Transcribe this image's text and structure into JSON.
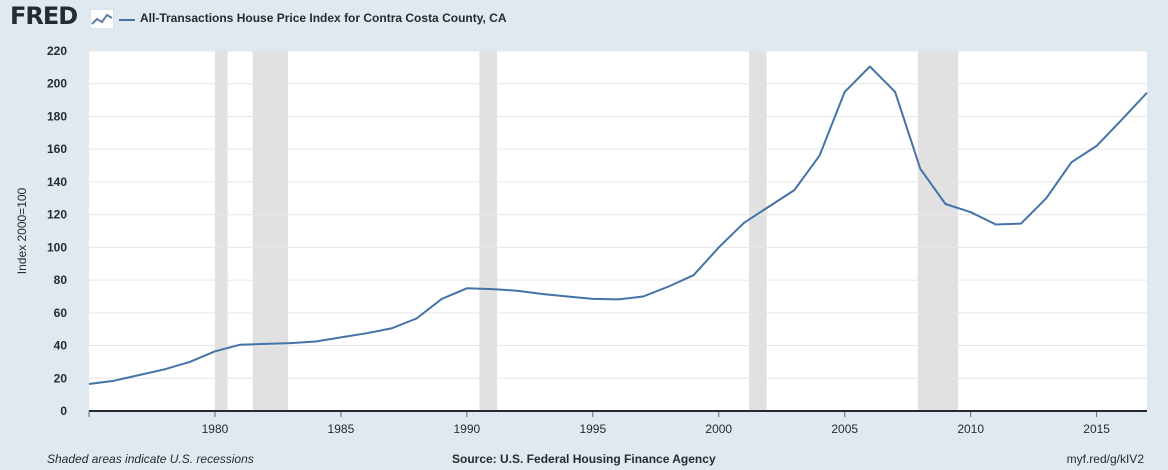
{
  "header": {
    "logo_text": "FRED",
    "logo_icon": "chart-line-icon",
    "legend_label": "All-Transactions House Price Index for Contra Costa County, CA"
  },
  "footer": {
    "note": "Shaded areas indicate U.S. recessions",
    "source": "Source: U.S. Federal Housing Finance Agency",
    "link": "myf.red/g/kIV2"
  },
  "colors": {
    "series": "#4572a7",
    "recession": "#e1e1e1",
    "background": "#e1e9f0",
    "plot_bg": "#ffffff",
    "grid": "#e6e6e6",
    "text": "#262a33"
  },
  "chart_data": {
    "type": "line",
    "title": "",
    "xlabel": "",
    "ylabel": "Index 2000=100",
    "xlim": [
      1975,
      2017
    ],
    "ylim": [
      0,
      220
    ],
    "y_ticks": [
      0,
      20,
      40,
      60,
      80,
      100,
      120,
      140,
      160,
      180,
      200,
      220
    ],
    "x_ticks": [
      1980,
      1985,
      1990,
      1995,
      2000,
      2005,
      2010,
      2015
    ],
    "grid": true,
    "legend_position": "top-left",
    "recessions": [
      [
        1980.0,
        1980.5
      ],
      [
        1981.5,
        1982.9
      ],
      [
        1990.5,
        1991.2
      ],
      [
        2001.2,
        2001.9
      ],
      [
        2007.9,
        2009.5
      ]
    ],
    "series": [
      {
        "name": "All-Transactions House Price Index for Contra Costa County, CA",
        "x": [
          1975,
          1976,
          1977,
          1978,
          1979,
          1980,
          1981,
          1982,
          1983,
          1984,
          1985,
          1986,
          1987,
          1988,
          1989,
          1990,
          1991,
          1992,
          1993,
          1994,
          1995,
          1996,
          1997,
          1998,
          1999,
          2000,
          2001,
          2002,
          2003,
          2004,
          2005,
          2006,
          2007,
          2008,
          2009,
          2010,
          2011,
          2012,
          2013,
          2014,
          2015,
          2016,
          2017
        ],
        "y": [
          16.5,
          18.5,
          22,
          25.5,
          30,
          36.5,
          40.5,
          41,
          41.5,
          42.5,
          45,
          47.5,
          50.5,
          56.5,
          68.5,
          75,
          74.5,
          73.5,
          71.5,
          70,
          68.5,
          68.2,
          70,
          76,
          83,
          100,
          115,
          125,
          135,
          156,
          195,
          210.5,
          195,
          148,
          126.5,
          121.5,
          114,
          114.5,
          130,
          152,
          162,
          178,
          194.5
        ]
      }
    ]
  }
}
